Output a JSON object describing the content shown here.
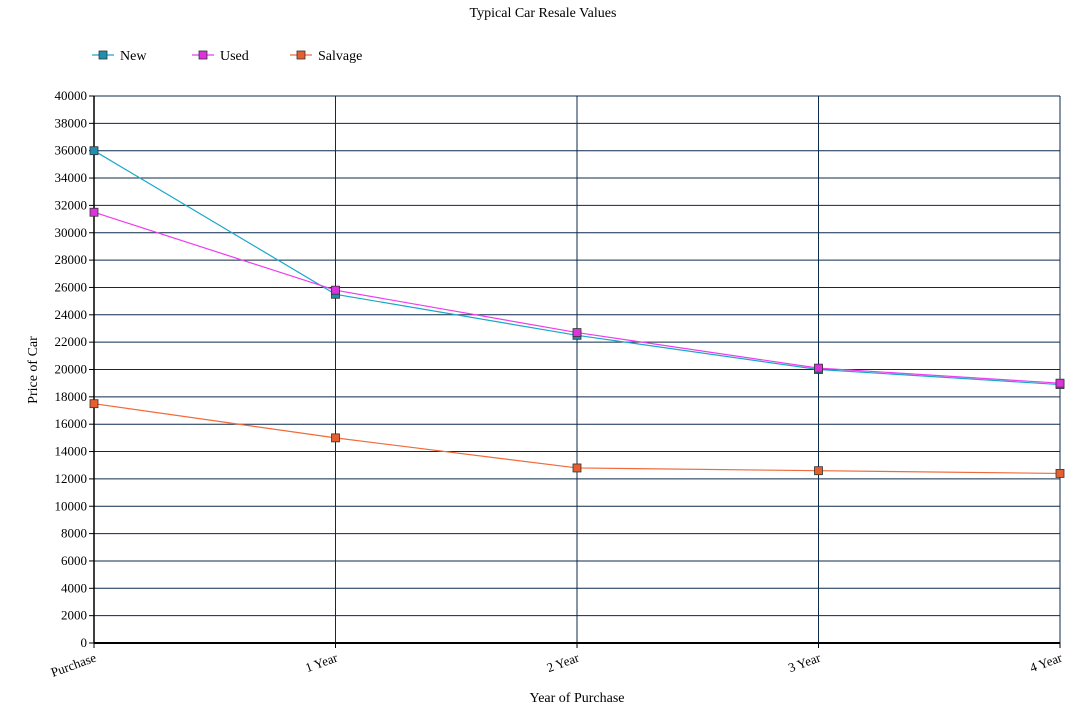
{
  "chart_data": {
    "type": "line",
    "title": "Typical Car Resale Values",
    "xlabel": "Year of Purchase",
    "ylabel": "Price of Car",
    "categories": [
      "Purchase",
      "1 Year",
      "2 Year",
      "3 Year",
      "4 Year"
    ],
    "ylim": [
      0,
      40000
    ],
    "y_ticks": [
      0,
      2000,
      4000,
      6000,
      8000,
      10000,
      12000,
      14000,
      16000,
      18000,
      20000,
      22000,
      24000,
      26000,
      28000,
      30000,
      32000,
      34000,
      36000,
      38000,
      40000
    ],
    "grid": true,
    "legend_position": "top-left",
    "series": [
      {
        "name": "New",
        "color": "#1aa7c9",
        "marker_color": "#1e8fb0",
        "values": [
          36000,
          25500,
          22500,
          20000,
          18900
        ]
      },
      {
        "name": "Used",
        "color": "#ee3cee",
        "marker_color": "#dd33dd",
        "values": [
          31500,
          25800,
          22700,
          20100,
          19000
        ]
      },
      {
        "name": "Salvage",
        "color": "#f06a3a",
        "marker_color": "#e65f2e",
        "values": [
          17500,
          15000,
          12800,
          12600,
          12400
        ]
      }
    ]
  }
}
